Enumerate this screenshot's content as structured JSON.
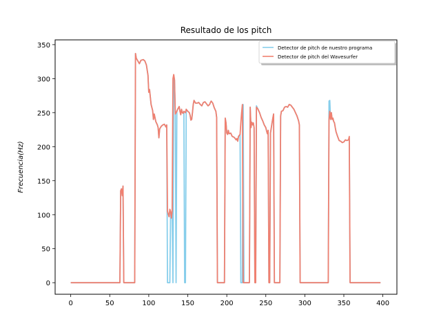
{
  "chart_data": {
    "type": "line",
    "title": "Resultado de los pitch",
    "xlabel": "",
    "ylabel": "Frecuencia(Hz)",
    "xlim": [
      -20,
      418
    ],
    "ylim": [
      -17,
      357
    ],
    "xticks": [
      0,
      50,
      100,
      150,
      200,
      250,
      300,
      350,
      400
    ],
    "yticks": [
      0,
      50,
      100,
      150,
      200,
      250,
      300,
      350
    ],
    "grid": false,
    "legend_position": "top-right",
    "series": [
      {
        "name": "Detector de pitch de nuestro programa",
        "color": "#87ceeb",
        "points": [
          [
            0,
            0
          ],
          [
            63,
            0
          ],
          [
            64,
            135
          ],
          [
            65,
            138
          ],
          [
            66,
            128
          ],
          [
            67,
            142
          ],
          [
            68,
            0
          ],
          [
            82,
            0
          ],
          [
            83,
            337
          ],
          [
            84,
            330
          ],
          [
            86,
            326
          ],
          [
            88,
            322
          ],
          [
            90,
            327
          ],
          [
            93,
            328
          ],
          [
            95,
            326
          ],
          [
            97,
            320
          ],
          [
            99,
            305
          ],
          [
            100,
            280
          ],
          [
            101,
            284
          ],
          [
            103,
            262
          ],
          [
            105,
            253
          ],
          [
            106,
            240
          ],
          [
            107,
            248
          ],
          [
            109,
            237
          ],
          [
            111,
            232
          ],
          [
            112,
            228
          ],
          [
            113,
            213
          ],
          [
            114,
            226
          ],
          [
            116,
            230
          ],
          [
            118,
            232
          ],
          [
            120,
            233
          ],
          [
            122,
            229
          ],
          [
            123,
            232
          ],
          [
            124,
            0
          ],
          [
            127,
            0
          ],
          [
            128,
            105
          ],
          [
            129,
            95
          ],
          [
            130,
            105
          ],
          [
            131,
            0
          ],
          [
            132,
            305
          ],
          [
            133,
            298
          ],
          [
            134,
            248
          ],
          [
            135,
            0
          ],
          [
            136,
            252
          ],
          [
            137,
            255
          ],
          [
            139,
            259
          ],
          [
            140,
            252
          ],
          [
            141,
            247
          ],
          [
            142,
            255
          ],
          [
            143,
            250
          ],
          [
            144,
            249
          ],
          [
            145,
            252
          ],
          [
            146,
            0
          ],
          [
            147,
            0
          ],
          [
            148,
            255
          ],
          [
            150,
            252
          ],
          [
            152,
            250
          ],
          [
            153,
            246
          ],
          [
            154,
            239
          ],
          [
            155,
            240
          ],
          [
            156,
            250
          ],
          [
            157,
            262
          ],
          [
            158,
            268
          ],
          [
            159,
            266
          ],
          [
            160,
            264
          ],
          [
            162,
            264
          ],
          [
            164,
            265
          ],
          [
            166,
            262
          ],
          [
            168,
            260
          ],
          [
            170,
            265
          ],
          [
            172,
            266
          ],
          [
            174,
            263
          ],
          [
            176,
            260
          ],
          [
            178,
            262
          ],
          [
            179,
            265
          ],
          [
            180,
            267
          ],
          [
            182,
            264
          ],
          [
            184,
            257
          ],
          [
            186,
            252
          ],
          [
            187,
            243
          ],
          [
            188,
            0
          ],
          [
            197,
            0
          ],
          [
            198,
            242
          ],
          [
            199,
            235
          ],
          [
            200,
            220
          ],
          [
            201,
            218
          ],
          [
            202,
            224
          ],
          [
            203,
            219
          ],
          [
            205,
            220
          ],
          [
            207,
            215
          ],
          [
            209,
            214
          ],
          [
            210,
            213
          ],
          [
            212,
            210
          ],
          [
            213,
            212
          ],
          [
            214,
            208
          ],
          [
            215,
            215
          ],
          [
            217,
            218
          ],
          [
            218,
            0
          ],
          [
            220,
            0
          ],
          [
            221,
            262
          ],
          [
            222,
            0
          ],
          [
            229,
            0
          ],
          [
            230,
            258
          ],
          [
            231,
            228
          ],
          [
            232,
            236
          ],
          [
            233,
            232
          ],
          [
            234,
            235
          ],
          [
            235,
            228
          ],
          [
            236,
            0
          ],
          [
            237,
            0
          ],
          [
            238,
            260
          ],
          [
            240,
            255
          ],
          [
            242,
            250
          ],
          [
            244,
            243
          ],
          [
            246,
            238
          ],
          [
            248,
            232
          ],
          [
            250,
            228
          ],
          [
            251,
            223
          ],
          [
            252,
            219
          ],
          [
            253,
            224
          ],
          [
            254,
            0
          ],
          [
            255,
            0
          ],
          [
            256,
            220
          ],
          [
            258,
            235
          ],
          [
            259,
            242
          ],
          [
            260,
            248
          ],
          [
            261,
            0
          ],
          [
            268,
            0
          ],
          [
            269,
            245
          ],
          [
            270,
            252
          ],
          [
            272,
            253
          ],
          [
            274,
            258
          ],
          [
            276,
            259
          ],
          [
            278,
            258
          ],
          [
            280,
            262
          ],
          [
            282,
            261
          ],
          [
            284,
            258
          ],
          [
            286,
            255
          ],
          [
            288,
            250
          ],
          [
            290,
            245
          ],
          [
            292,
            238
          ],
          [
            293,
            232
          ],
          [
            294,
            0
          ],
          [
            330,
            0
          ],
          [
            331,
            267
          ],
          [
            332,
            268
          ],
          [
            333,
            240
          ],
          [
            334,
            250
          ],
          [
            335,
            240
          ],
          [
            336,
            242
          ],
          [
            337,
            237
          ],
          [
            338,
            235
          ],
          [
            339,
            228
          ],
          [
            340,
            222
          ],
          [
            342,
            215
          ],
          [
            344,
            209
          ],
          [
            346,
            208
          ],
          [
            348,
            206
          ],
          [
            350,
            207
          ],
          [
            352,
            210
          ],
          [
            354,
            209
          ],
          [
            356,
            210
          ],
          [
            357,
            212
          ],
          [
            358,
            0
          ],
          [
            397,
            0
          ]
        ]
      },
      {
        "name": "Detector de pitch del Wavesurfer",
        "color": "#f08070",
        "points": [
          [
            0,
            0
          ],
          [
            63,
            0
          ],
          [
            64,
            135
          ],
          [
            65,
            138
          ],
          [
            66,
            128
          ],
          [
            67,
            142
          ],
          [
            68,
            0
          ],
          [
            82,
            0
          ],
          [
            83,
            337
          ],
          [
            84,
            330
          ],
          [
            86,
            326
          ],
          [
            88,
            322
          ],
          [
            90,
            327
          ],
          [
            93,
            328
          ],
          [
            95,
            326
          ],
          [
            97,
            320
          ],
          [
            99,
            305
          ],
          [
            100,
            280
          ],
          [
            101,
            284
          ],
          [
            103,
            262
          ],
          [
            105,
            253
          ],
          [
            106,
            240
          ],
          [
            107,
            248
          ],
          [
            109,
            237
          ],
          [
            111,
            232
          ],
          [
            112,
            228
          ],
          [
            113,
            213
          ],
          [
            114,
            226
          ],
          [
            116,
            230
          ],
          [
            118,
            232
          ],
          [
            120,
            233
          ],
          [
            122,
            229
          ],
          [
            123,
            232
          ],
          [
            124,
            105
          ],
          [
            126,
            97
          ],
          [
            127,
            108
          ],
          [
            128,
            105
          ],
          [
            129,
            95
          ],
          [
            130,
            105
          ],
          [
            131,
            300
          ],
          [
            132,
            306
          ],
          [
            133,
            298
          ],
          [
            134,
            248
          ],
          [
            135,
            250
          ],
          [
            136,
            252
          ],
          [
            137,
            255
          ],
          [
            139,
            259
          ],
          [
            140,
            252
          ],
          [
            141,
            247
          ],
          [
            142,
            255
          ],
          [
            143,
            250
          ],
          [
            144,
            249
          ],
          [
            145,
            252
          ],
          [
            147,
            250
          ],
          [
            148,
            255
          ],
          [
            150,
            252
          ],
          [
            152,
            250
          ],
          [
            153,
            246
          ],
          [
            154,
            239
          ],
          [
            155,
            240
          ],
          [
            156,
            250
          ],
          [
            157,
            262
          ],
          [
            158,
            268
          ],
          [
            159,
            266
          ],
          [
            160,
            264
          ],
          [
            162,
            264
          ],
          [
            164,
            265
          ],
          [
            166,
            262
          ],
          [
            168,
            260
          ],
          [
            170,
            265
          ],
          [
            172,
            266
          ],
          [
            174,
            263
          ],
          [
            176,
            260
          ],
          [
            178,
            262
          ],
          [
            179,
            265
          ],
          [
            180,
            267
          ],
          [
            182,
            264
          ],
          [
            184,
            257
          ],
          [
            186,
            252
          ],
          [
            187,
            243
          ],
          [
            188,
            0
          ],
          [
            197,
            0
          ],
          [
            198,
            242
          ],
          [
            199,
            235
          ],
          [
            200,
            220
          ],
          [
            201,
            218
          ],
          [
            202,
            224
          ],
          [
            203,
            219
          ],
          [
            205,
            220
          ],
          [
            207,
            215
          ],
          [
            209,
            214
          ],
          [
            210,
            213
          ],
          [
            212,
            210
          ],
          [
            213,
            212
          ],
          [
            214,
            208
          ],
          [
            215,
            215
          ],
          [
            217,
            218
          ],
          [
            218,
            235
          ],
          [
            219,
            250
          ],
          [
            220,
            262
          ],
          [
            221,
            0
          ],
          [
            229,
            0
          ],
          [
            230,
            258
          ],
          [
            231,
            228
          ],
          [
            232,
            236
          ],
          [
            233,
            232
          ],
          [
            234,
            235
          ],
          [
            235,
            228
          ],
          [
            236,
            0
          ],
          [
            237,
            0
          ],
          [
            238,
            258
          ],
          [
            240,
            255
          ],
          [
            242,
            250
          ],
          [
            244,
            243
          ],
          [
            246,
            238
          ],
          [
            248,
            232
          ],
          [
            250,
            228
          ],
          [
            251,
            223
          ],
          [
            252,
            219
          ],
          [
            253,
            224
          ],
          [
            254,
            0
          ],
          [
            255,
            0
          ],
          [
            256,
            220
          ],
          [
            258,
            235
          ],
          [
            259,
            242
          ],
          [
            260,
            248
          ],
          [
            261,
            0
          ],
          [
            268,
            0
          ],
          [
            269,
            245
          ],
          [
            270,
            252
          ],
          [
            272,
            253
          ],
          [
            274,
            258
          ],
          [
            276,
            259
          ],
          [
            278,
            258
          ],
          [
            280,
            262
          ],
          [
            282,
            261
          ],
          [
            284,
            258
          ],
          [
            286,
            255
          ],
          [
            288,
            250
          ],
          [
            290,
            245
          ],
          [
            292,
            238
          ],
          [
            293,
            232
          ],
          [
            294,
            0
          ],
          [
            330,
            0
          ],
          [
            331,
            240
          ],
          [
            332,
            252
          ],
          [
            333,
            240
          ],
          [
            334,
            250
          ],
          [
            335,
            240
          ],
          [
            336,
            242
          ],
          [
            337,
            237
          ],
          [
            338,
            235
          ],
          [
            339,
            228
          ],
          [
            340,
            222
          ],
          [
            342,
            215
          ],
          [
            344,
            209
          ],
          [
            346,
            208
          ],
          [
            348,
            206
          ],
          [
            350,
            207
          ],
          [
            352,
            210
          ],
          [
            354,
            209
          ],
          [
            356,
            210
          ],
          [
            357,
            215
          ],
          [
            358,
            0
          ],
          [
            397,
            0
          ]
        ]
      }
    ]
  }
}
